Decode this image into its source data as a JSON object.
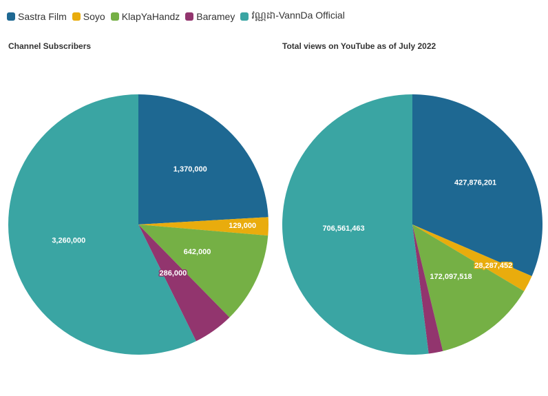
{
  "legend": [
    {
      "name": "Sastra Film",
      "color": "#1e6892"
    },
    {
      "name": "Soyo",
      "color": "#e9ac0d"
    },
    {
      "name": "KlapYaHandz",
      "color": "#75b045"
    },
    {
      "name": "Baramey",
      "color": "#92356e"
    },
    {
      "name": "វណ្ណដា-VannDa Official",
      "color": "#3aa5a3"
    }
  ],
  "chart_data": [
    {
      "type": "pie",
      "title": "Channel Subscribers",
      "categories": [
        "Sastra Film",
        "Soyo",
        "KlapYaHandz",
        "Baramey",
        "វណ្ណដា-VannDa Official"
      ],
      "values": [
        1370000,
        129000,
        642000,
        286000,
        3260000
      ],
      "labels": [
        "1,370,000",
        "129,000",
        "642,000",
        "286,000",
        "3,260,000"
      ],
      "colors": [
        "#1e6892",
        "#e9ac0d",
        "#75b045",
        "#92356e",
        "#3aa5a3"
      ]
    },
    {
      "type": "pie",
      "title": "Total views on YouTube as of July 2022",
      "categories": [
        "Sastra Film",
        "Soyo",
        "KlapYaHandz",
        "Baramey",
        "វណ្ណដា-VannDa Official"
      ],
      "values": [
        427876201,
        28287452,
        172097518,
        24000000,
        706561463
      ],
      "labels": [
        "427,876,201",
        "28,287,452",
        "172,097,518",
        "",
        "706,561,463"
      ],
      "colors": [
        "#1e6892",
        "#e9ac0d",
        "#75b045",
        "#92356e",
        "#3aa5a3"
      ]
    }
  ]
}
